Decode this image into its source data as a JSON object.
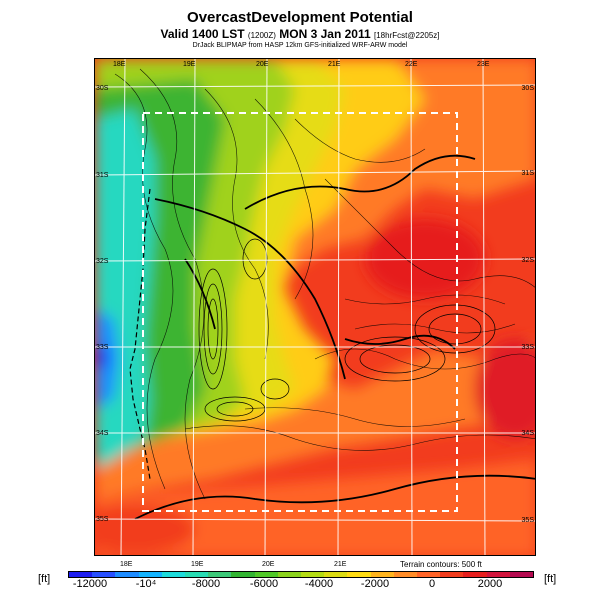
{
  "header": {
    "title": "OvercastDevelopment Potential",
    "valid_main": "Valid 1400 LST",
    "valid_zulu": "(1200Z)",
    "valid_date": "MON 3 Jan 2011",
    "valid_fcst": "[18hrFcst@2205z]",
    "credit": "DrJack BLIPMAP from HASP 12km GFS-initialized WRF-ARW model"
  },
  "map": {
    "lon_ticks_top": [
      "18E",
      "19E",
      "20E",
      "21E",
      "22E",
      "23E"
    ],
    "lon_ticks_bottom": [
      "18E",
      "19E",
      "20E",
      "21E"
    ],
    "lat_ticks_left": [
      "30S",
      "31S",
      "32S",
      "33S",
      "34S",
      "35S"
    ],
    "lat_ticks_right": [
      "30S",
      "31S",
      "32S",
      "33S",
      "34S",
      "35S"
    ],
    "terrain_note": "Terrain contours: 500 ft"
  },
  "colorbar": {
    "unit_left": "[ft]",
    "unit_right": "[ft]",
    "labels": [
      "-12000",
      "-10⁴",
      "-8000",
      "-6000",
      "-4000",
      "-2000",
      "0",
      "2000"
    ],
    "colors": [
      "#1e1ef0",
      "#2850ff",
      "#1e8cff",
      "#14b4ff",
      "#1edcdc",
      "#28dcb4",
      "#3cc878",
      "#32b432",
      "#50c828",
      "#8cd21e",
      "#b4dc14",
      "#dcdc14",
      "#ffdc14",
      "#ffb41e",
      "#ff8c28",
      "#ff6428",
      "#f03c1e",
      "#e61e1e",
      "#d2143c",
      "#b40a50"
    ]
  }
}
